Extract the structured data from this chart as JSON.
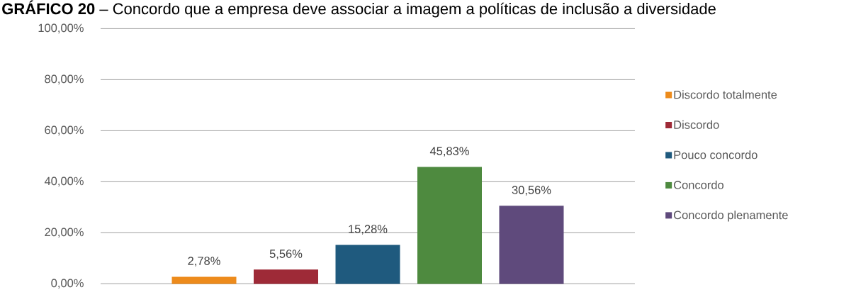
{
  "chart_data": {
    "type": "bar",
    "title": "**GRÁFICO 20** – Concordo que a empresa deve associar a imagem a políticas de inclusão a diversidade",
    "categories": [
      null
    ],
    "series": [
      {
        "name": "Discordo totalmente",
        "color": "#ed8b1c",
        "values": [
          2.78
        ],
        "value_labels": [
          "2,78%"
        ]
      },
      {
        "name": "Discordo",
        "color": "#9e2a37",
        "values": [
          5.56
        ],
        "value_labels": [
          "5,56%"
        ]
      },
      {
        "name": "Pouco concordo",
        "color": "#1f5a7e",
        "values": [
          15.28
        ],
        "value_labels": [
          "15,28%"
        ]
      },
      {
        "name": "Concordo",
        "color": "#4e8a3f",
        "values": [
          45.83
        ],
        "value_labels": [
          "45,83%"
        ]
      },
      {
        "name": "Concordo plenamente",
        "color": "#5f4a7c",
        "values": [
          30.56
        ],
        "value_labels": [
          "30,56%"
        ]
      }
    ],
    "ylim": [
      0,
      100
    ],
    "yticks": [
      {
        "value": 0,
        "label": "0,00%"
      },
      {
        "value": 20,
        "label": "20,00%"
      },
      {
        "value": 40,
        "label": "40,00%"
      },
      {
        "value": 60,
        "label": "60,00%"
      },
      {
        "value": 80,
        "label": "80,00%"
      },
      {
        "value": 100,
        "label": "100,00%"
      }
    ],
    "grid": "y",
    "legend": "right"
  }
}
